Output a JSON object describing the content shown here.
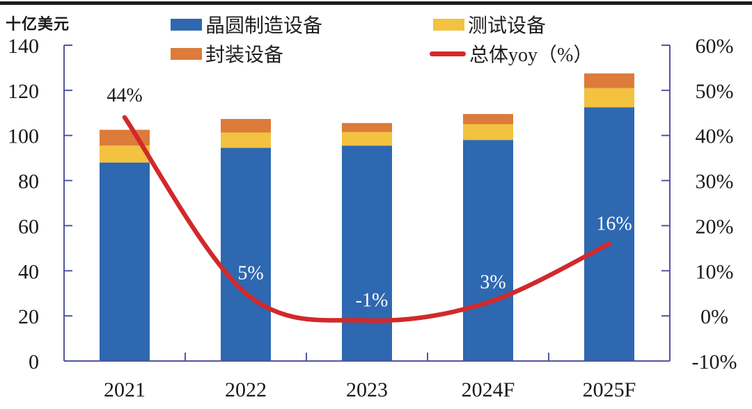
{
  "unit_label": "十亿美元",
  "colors": {
    "fab_bar": "#2E68B0",
    "test_bar": "#F2C240",
    "pkg_bar": "#DC7B3A",
    "yoy_line": "#D2292B",
    "axis": "#54549E",
    "text_dark": "#1a1a1a",
    "label_on_bar": "#FFFFFF",
    "top_border": "#1c1c1c"
  },
  "legend": {
    "items": [
      {
        "label": "晶圆制造设备",
        "swatch": "box",
        "color_key": "fab_bar"
      },
      {
        "label": "测试设备",
        "swatch": "box",
        "color_key": "test_bar"
      },
      {
        "label": "封装设备",
        "swatch": "box",
        "color_key": "pkg_bar"
      },
      {
        "label": "总体yoy（%）",
        "swatch": "line",
        "color_key": "yoy_line"
      }
    ]
  },
  "chart_data": {
    "type": "bar",
    "subtype": "stacked-bars-with-line",
    "title": "",
    "ylabel_left": "十亿美元",
    "ylabel_right": "",
    "categories": [
      "2021",
      "2022",
      "2023",
      "2024F",
      "2025F"
    ],
    "series": [
      {
        "name": "晶圆制造设备",
        "type": "bar",
        "stack": "equip",
        "axis": "left",
        "color_key": "fab_bar",
        "values": [
          88,
          94.5,
          95.5,
          98,
          112.5
        ]
      },
      {
        "name": "测试设备",
        "type": "bar",
        "stack": "equip",
        "axis": "left",
        "color_key": "test_bar",
        "values": [
          7.5,
          6.8,
          6,
          7,
          8.5
        ]
      },
      {
        "name": "封装设备",
        "type": "bar",
        "stack": "equip",
        "axis": "left",
        "color_key": "pkg_bar",
        "values": [
          7,
          6,
          4,
          4.5,
          6.5
        ]
      },
      {
        "name": "总体yoy（%）",
        "type": "line",
        "axis": "right",
        "color_key": "yoy_line",
        "values": [
          44,
          5,
          -1,
          3,
          16
        ],
        "point_labels": [
          "44%",
          "5%",
          "-1%",
          "3%",
          "16%"
        ]
      }
    ],
    "left_axis": {
      "min": 0,
      "max": 140,
      "step": 20,
      "tick_labels": [
        "0",
        "20",
        "40",
        "60",
        "80",
        "100",
        "120",
        "140"
      ]
    },
    "right_axis": {
      "min": -10,
      "max": 60,
      "step": 10,
      "tick_labels": [
        "-10%",
        "0%",
        "10%",
        "20%",
        "30%",
        "40%",
        "50%",
        "60%"
      ]
    },
    "grid": false,
    "legend_position": "top"
  }
}
